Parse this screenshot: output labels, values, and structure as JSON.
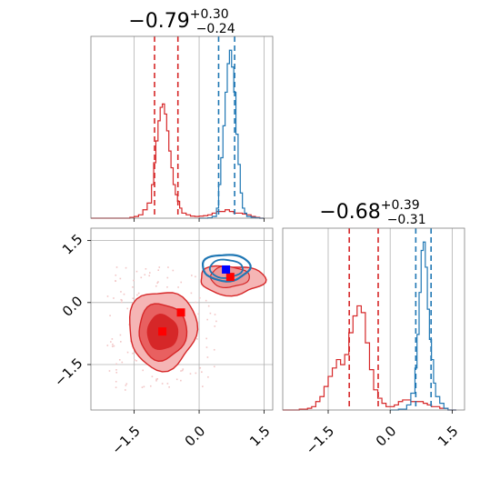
{
  "chart_data": [
    {
      "type": "histogram",
      "panel": "param1-marginal",
      "title": {
        "median": "−0.79",
        "plus": "+0.30",
        "minus": "−0.24"
      },
      "xlim": [
        -2.5,
        1.7
      ],
      "grid": true,
      "series": [
        {
          "name": "",
          "color": "#d62728",
          "x": [
            -2.5,
            -2.4,
            -2.3,
            -2.2,
            -2.1,
            -2.0,
            -1.9,
            -1.8,
            -1.7,
            -1.6,
            -1.5,
            -1.4,
            -1.3,
            -1.2,
            -1.1,
            -1.05,
            -1.0,
            -0.95,
            -0.9,
            -0.85,
            -0.8,
            -0.75,
            -0.7,
            -0.65,
            -0.6,
            -0.55,
            -0.5,
            -0.45,
            -0.4,
            -0.3,
            -0.2,
            -0.1,
            0.0,
            0.1,
            0.2,
            0.3,
            0.4,
            0.5,
            0.6,
            0.7,
            0.8,
            0.9,
            1.0,
            1.1,
            1.2,
            1.3,
            1.4,
            1.5
          ],
          "y": [
            0.0,
            0.0,
            0.0,
            0.0,
            0.0,
            0.0,
            0.0,
            0.0,
            0.0,
            0.005,
            0.01,
            0.02,
            0.05,
            0.09,
            0.2,
            0.33,
            0.46,
            0.58,
            0.66,
            0.68,
            0.62,
            0.52,
            0.4,
            0.3,
            0.2,
            0.14,
            0.1,
            0.06,
            0.03,
            0.02,
            0.012,
            0.01,
            0.012,
            0.015,
            0.02,
            0.03,
            0.04,
            0.04,
            0.05,
            0.04,
            0.03,
            0.03,
            0.025,
            0.02,
            0.01,
            0.005,
            0.0,
            0.0
          ]
        },
        {
          "name": "",
          "color": "#1f77b4",
          "x": [
            0.0,
            0.1,
            0.2,
            0.3,
            0.4,
            0.45,
            0.5,
            0.55,
            0.6,
            0.65,
            0.7,
            0.75,
            0.8,
            0.85,
            0.9,
            0.95,
            1.0,
            1.05,
            1.1,
            1.2,
            1.3,
            1.4,
            1.5
          ],
          "y": [
            0.0,
            0.0,
            0.002,
            0.01,
            0.06,
            0.2,
            0.36,
            0.55,
            0.75,
            0.92,
            1.0,
            0.9,
            0.75,
            0.5,
            0.32,
            0.15,
            0.06,
            0.03,
            0.01,
            0.005,
            0.002,
            0.0,
            0.0
          ]
        }
      ],
      "quantile_lines": [
        {
          "color": "#d62728",
          "values": [
            -1.03,
            -0.49
          ]
        },
        {
          "color": "#1f77b4",
          "values": [
            0.45,
            0.82
          ]
        }
      ]
    },
    {
      "type": "contour",
      "panel": "joint",
      "xlim": [
        -2.5,
        1.7
      ],
      "ylim": [
        -2.6,
        1.8
      ],
      "xticks": [
        "−1.5",
        "0.0",
        "1.5"
      ],
      "yticks": [
        "1.5",
        "0.0",
        "−1.5"
      ],
      "grid": true,
      "markers": [
        {
          "shape": "square",
          "color": "#ff0000",
          "x": -0.42,
          "y": -0.24
        },
        {
          "shape": "square",
          "color": "#ff0000",
          "x": -0.85,
          "y": -0.7
        },
        {
          "shape": "square",
          "color": "#ff0000",
          "x": 0.72,
          "y": 0.62
        },
        {
          "shape": "square",
          "color": "#0000ff",
          "x": 0.62,
          "y": 0.8
        }
      ]
    },
    {
      "type": "histogram",
      "panel": "param2-marginal",
      "title": {
        "median": "−0.68",
        "plus": "+0.39",
        "minus": "−0.31"
      },
      "xlim": [
        -2.6,
        1.8
      ],
      "xticks": [
        "−1.5",
        "0.0",
        "1.5"
      ],
      "grid": true,
      "series": [
        {
          "name": "",
          "color": "#d62728",
          "x": [
            -2.6,
            -2.4,
            -2.2,
            -2.0,
            -1.9,
            -1.8,
            -1.7,
            -1.6,
            -1.5,
            -1.4,
            -1.3,
            -1.2,
            -1.1,
            -1.0,
            -0.9,
            -0.8,
            -0.7,
            -0.6,
            -0.5,
            -0.4,
            -0.3,
            -0.2,
            -0.1,
            0.0,
            0.1,
            0.2,
            0.3,
            0.4,
            0.5,
            0.6,
            0.7,
            0.8,
            0.9,
            1.0,
            1.2,
            1.4,
            1.6
          ],
          "y": [
            0.0,
            0.0,
            0.005,
            0.01,
            0.02,
            0.05,
            0.08,
            0.14,
            0.2,
            0.25,
            0.3,
            0.27,
            0.33,
            0.46,
            0.56,
            0.62,
            0.58,
            0.4,
            0.24,
            0.12,
            0.07,
            0.04,
            0.02,
            0.02,
            0.03,
            0.05,
            0.06,
            0.06,
            0.05,
            0.05,
            0.05,
            0.04,
            0.03,
            0.02,
            0.01,
            0.0,
            0.0
          ]
        },
        {
          "name": "",
          "color": "#1f77b4",
          "x": [
            0.0,
            0.2,
            0.4,
            0.5,
            0.6,
            0.65,
            0.7,
            0.75,
            0.8,
            0.85,
            0.9,
            0.95,
            1.0,
            1.05,
            1.1,
            1.2,
            1.3,
            1.4,
            1.6
          ],
          "y": [
            0.0,
            0.005,
            0.03,
            0.1,
            0.25,
            0.45,
            0.7,
            0.95,
            1.0,
            0.85,
            0.6,
            0.42,
            0.3,
            0.16,
            0.08,
            0.04,
            0.01,
            0.0,
            0.0
          ]
        }
      ],
      "quantile_lines": [
        {
          "color": "#d62728",
          "values": [
            -0.99,
            -0.29
          ]
        },
        {
          "color": "#1f77b4",
          "values": [
            0.62,
            0.99
          ]
        }
      ]
    }
  ]
}
